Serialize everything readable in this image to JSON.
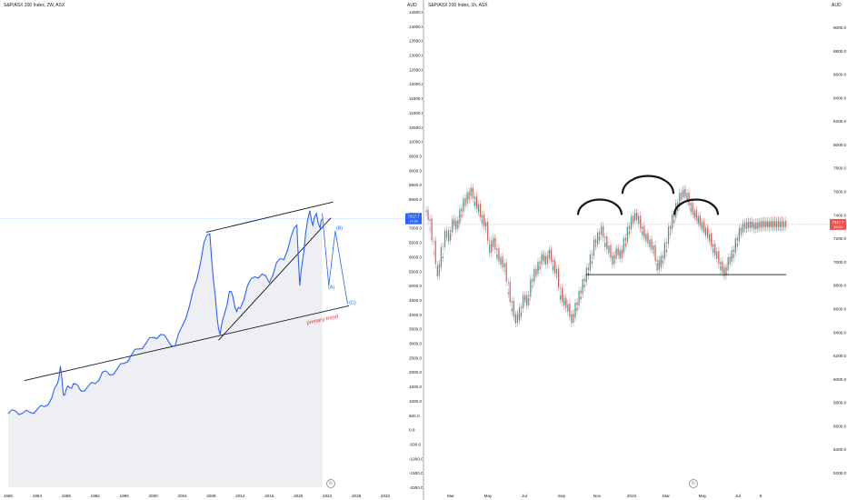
{
  "left_chart": {
    "title": "S&P/ASX 200 Index, 2W, ASX",
    "currency": "AUD",
    "price_tag": "7317.7",
    "price_tag_sub": "14:39",
    "annotations": {
      "wave_a": "(A)",
      "wave_b": "(B)",
      "wave_c": "(C)",
      "trend_label": "primary trend"
    }
  },
  "right_chart": {
    "title": "S&P/ASX 200 Index, 1h, ASX",
    "currency": "AUD",
    "price_tag": "7317.7",
    "price_tag_sub": "15:24"
  },
  "icons": {
    "reset_left": "reset-scale-icon",
    "reset_right": "reset-scale-icon"
  },
  "colors": {
    "line": "#2962ff",
    "up": "#26a69a",
    "down": "#ef5350",
    "trend": "#131722",
    "trend_label": "#e53935",
    "tag": "#2962ff"
  },
  "chart_data": [
    {
      "type": "line",
      "title": "S&P/ASX 200 Index, 2W, ASX",
      "ylabel": "AUD",
      "x_ticks": [
        "1980",
        "1984",
        "1988",
        "1992",
        "1996",
        "2000",
        "2004",
        "2008",
        "2012",
        "2016",
        "2020",
        "2024",
        "2028",
        "2032"
      ],
      "y_ticks": [
        "-2000.0",
        "-1500.0",
        "-1000.0",
        "-500.0",
        "0.0",
        "500.0",
        "1000.0",
        "1500.0",
        "2000.0",
        "2500.0",
        "3000.0",
        "3500.0",
        "4000.0",
        "4500.0",
        "5000.0",
        "5500.0",
        "6000.0",
        "6500.0",
        "7000.0",
        "7500.0",
        "8000.0",
        "8500.0",
        "9000.0",
        "9500.0",
        "10000.0",
        "10500.0",
        "11000.0",
        "11500.0",
        "12000.0",
        "12500.0",
        "13000.0",
        "13500.0",
        "14000.0",
        "14500.0"
      ],
      "ylim": [
        -2100,
        14800
      ],
      "xlim": [
        1979.5,
        2033
      ],
      "series": [
        {
          "x": [
            1980,
            1981,
            1982,
            1983,
            1984,
            1985,
            1986,
            1986.8,
            1987.2,
            1987.6,
            1988,
            1988.5,
            1989,
            1990,
            1991,
            1992,
            1993,
            1994,
            1995,
            1996,
            1997,
            1998,
            1999,
            2000,
            2001,
            2002,
            2003,
            2004,
            2005,
            2006,
            2007,
            2007.8,
            2008.3,
            2008.8,
            2009.2,
            2009.8,
            2010.5,
            2011,
            2011.5,
            2012,
            2013,
            2014,
            2015,
            2016,
            2017,
            2018,
            2019,
            2019.8,
            2020.2,
            2020.6,
            2021,
            2021.6,
            2022,
            2022.5,
            2023,
            2023.3
          ],
          "y": [
            550,
            650,
            570,
            600,
            700,
            800,
            1100,
            1600,
            2200,
            1200,
            1400,
            1450,
            1600,
            1350,
            1500,
            1600,
            2000,
            1900,
            2100,
            2300,
            2600,
            2800,
            3000,
            3200,
            3300,
            3100,
            2900,
            3600,
            4300,
            5200,
            6500,
            6800,
            5200,
            3900,
            3300,
            4000,
            4800,
            4600,
            4100,
            4200,
            5000,
            5300,
            5400,
            5100,
            5800,
            5900,
            6700,
            7100,
            5000,
            5900,
            6800,
            7600,
            7100,
            7500,
            7000,
            7318
          ]
        }
      ]
    },
    {
      "type": "line",
      "title": "S&P/ASX 200 Index, 1h, ASX",
      "ylabel": "AUD",
      "x_ticks": [
        "Mar",
        "May",
        "Jul",
        "Sep",
        "Nov",
        "2023",
        "Mar",
        "May",
        "Jul",
        "9"
      ],
      "y_ticks": [
        "5200.0",
        "5400.0",
        "5600.0",
        "5800.0",
        "6000.0",
        "6200.0",
        "6400.0",
        "6600.0",
        "6800.0",
        "7000.0",
        "7200.0",
        "7400.0",
        "7600.0",
        "7800.0",
        "8000.0",
        "8200.0",
        "8400.0",
        "8600.0",
        "8800.0",
        "9000.0"
      ],
      "ylim": [
        5150,
        9150
      ],
      "series": [
        {
          "x": [
            0,
            0.5,
            1,
            1.5,
            2,
            2.5,
            3,
            3.5,
            4,
            4.5,
            5,
            5.5,
            6,
            6.5,
            7,
            7.5,
            8,
            8.5,
            9,
            9.5,
            10,
            10.5,
            11,
            11.5,
            12,
            12.5,
            13,
            13.5,
            14,
            14.5,
            15,
            15.5,
            16,
            16.5,
            17,
            17.5,
            18,
            18.5,
            19,
            19.5,
            20,
            20.5,
            21,
            21.5,
            22,
            22.5,
            23,
            23.5,
            24,
            24.5,
            25,
            25.5,
            26,
            26.5,
            27,
            27.5,
            28,
            28.5,
            29,
            29.5,
            30,
            30.5,
            31,
            31.5,
            32,
            32.5,
            33,
            33.5,
            34,
            34.5,
            35,
            35.5,
            36,
            36.5,
            37,
            37.5,
            38,
            38.5,
            39,
            39.5,
            40,
            40.5,
            41,
            41.5,
            42,
            42.5,
            43,
            43.5,
            44,
            44.5,
            45,
            45.5,
            46,
            46.5,
            47,
            47.5,
            48
          ],
          "y": [
            7450,
            7300,
            7100,
            6900,
            7050,
            7250,
            7200,
            7350,
            7300,
            7400,
            7500,
            7550,
            7620,
            7500,
            7450,
            7350,
            7300,
            7100,
            7200,
            7050,
            7000,
            6950,
            6750,
            6600,
            6500,
            6550,
            6700,
            6650,
            6800,
            6900,
            6950,
            7050,
            7000,
            7100,
            6950,
            6900,
            6700,
            6650,
            6600,
            6500,
            6600,
            6700,
            6800,
            6900,
            7000,
            7150,
            7200,
            7300,
            7150,
            7100,
            7000,
            7100,
            7050,
            7150,
            7250,
            7350,
            7400,
            7350,
            7250,
            7200,
            7150,
            7100,
            6950,
            7000,
            7100,
            7250,
            7350,
            7450,
            7550,
            7600,
            7550,
            7450,
            7400,
            7350,
            7300,
            7250,
            7200,
            7100,
            7050,
            6950,
            6900,
            7000,
            7050,
            7150,
            7250,
            7300,
            7310,
            7318,
            7300,
            7310,
            7318,
            7318,
            7318,
            7318,
            7318,
            7318,
            7318
          ]
        }
      ]
    }
  ]
}
